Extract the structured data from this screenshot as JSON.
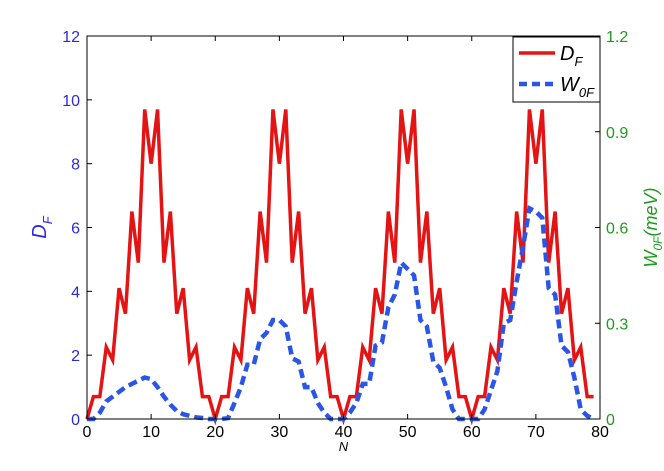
{
  "chart_data": {
    "type": "line",
    "x_axis": {
      "label": "N",
      "range": [
        0,
        80
      ],
      "ticks": [
        0,
        10,
        20,
        30,
        40,
        50,
        60,
        70,
        80
      ],
      "tick_labels": [
        "0",
        "10",
        "20",
        "30",
        "40",
        "50",
        "60",
        "70",
        "80"
      ]
    },
    "y_axis_left": {
      "label": "D",
      "label_sub": "F",
      "range": [
        0,
        12
      ],
      "ticks": [
        0,
        2,
        4,
        6,
        8,
        10,
        12
      ],
      "tick_labels": [
        "0",
        "2",
        "4",
        "6",
        "8",
        "10",
        "12"
      ],
      "color": "#2b2bd9"
    },
    "y_axis_right": {
      "label": "W",
      "label_sub": "0F",
      "label_suffix": "(meV)",
      "range": [
        0,
        1.2
      ],
      "ticks": [
        0,
        0.3,
        0.6,
        0.9,
        1.2
      ],
      "tick_labels": [
        "0",
        "0.3",
        "0.6",
        "0.9",
        "1.2"
      ],
      "color": "#1f9a1f"
    },
    "legend": {
      "position": "top-right",
      "entries": [
        {
          "label": "D",
          "sub": "F",
          "color": "#e41414",
          "style": "solid"
        },
        {
          "label": "W",
          "sub": "0F",
          "color": "#2b55e6",
          "style": "dashed"
        }
      ]
    },
    "grid": false,
    "series": [
      {
        "name": "D_F",
        "axis": "left",
        "color": "#e41414",
        "style": "solid",
        "x": [
          0,
          1,
          2,
          3,
          4,
          5,
          6,
          7,
          8,
          9,
          10,
          11,
          12,
          13,
          14,
          15,
          16,
          17,
          18,
          19,
          20,
          21,
          22,
          23,
          24,
          25,
          26,
          27,
          28,
          29,
          30,
          31,
          32,
          33,
          34,
          35,
          36,
          37,
          38,
          39,
          40,
          41,
          42,
          43,
          44,
          45,
          46,
          47,
          48,
          49,
          50,
          51,
          52,
          53,
          54,
          55,
          56,
          57,
          58,
          59,
          60,
          61,
          62,
          63,
          64,
          65,
          66,
          67,
          68,
          69,
          70,
          71,
          72,
          73,
          74,
          75,
          76,
          77,
          78,
          79
        ],
        "y": [
          0,
          0.7,
          0.7,
          2.25,
          1.85,
          4.1,
          3.3,
          6.5,
          4.9,
          9.7,
          8.0,
          9.7,
          4.9,
          6.5,
          3.3,
          4.1,
          1.85,
          2.25,
          0.7,
          0.7,
          0,
          0.7,
          0.7,
          2.25,
          1.85,
          4.1,
          3.3,
          6.5,
          4.9,
          9.7,
          8.0,
          9.7,
          4.9,
          6.5,
          3.3,
          4.1,
          1.85,
          2.25,
          0.7,
          0.7,
          0,
          0.7,
          0.7,
          2.25,
          1.85,
          4.1,
          3.3,
          6.5,
          4.9,
          9.7,
          8.0,
          9.7,
          4.9,
          6.5,
          3.3,
          4.1,
          1.85,
          2.25,
          0.7,
          0.7,
          0,
          0.7,
          0.7,
          2.25,
          1.85,
          4.1,
          3.3,
          6.5,
          4.9,
          9.7,
          8.0,
          9.7,
          4.9,
          6.5,
          3.3,
          4.1,
          1.85,
          2.25,
          0.7,
          0.7
        ]
      },
      {
        "name": "W_0F",
        "axis": "right",
        "color": "#2b55e6",
        "style": "dashed",
        "x": [
          0,
          1,
          2,
          3,
          4,
          5,
          6,
          7,
          8,
          9,
          10,
          11,
          12,
          13,
          14,
          15,
          16,
          17,
          18,
          19,
          20,
          21,
          22,
          23,
          24,
          25,
          26,
          27,
          28,
          29,
          30,
          31,
          32,
          33,
          34,
          35,
          36,
          37,
          38,
          39,
          40,
          41,
          42,
          43,
          44,
          45,
          46,
          47,
          48,
          49,
          50,
          51,
          52,
          53,
          54,
          55,
          56,
          57,
          58,
          59,
          60,
          61,
          62,
          63,
          64,
          65,
          66,
          67,
          68,
          69,
          70,
          71,
          72,
          73,
          74,
          75,
          76,
          77,
          78,
          79
        ],
        "y": [
          0,
          0,
          0.02,
          0.055,
          0.07,
          0.085,
          0.1,
          0.11,
          0.12,
          0.13,
          0.125,
          0.1,
          0.07,
          0.045,
          0.025,
          0.015,
          0.01,
          0.005,
          0.003,
          0,
          0,
          0,
          0.003,
          0.05,
          0.1,
          0.17,
          0.17,
          0.25,
          0.27,
          0.31,
          0.31,
          0.29,
          0.19,
          0.18,
          0.1,
          0.1,
          0.05,
          0.02,
          0,
          0,
          0,
          0.02,
          0.05,
          0.11,
          0.11,
          0.23,
          0.24,
          0.35,
          0.39,
          0.49,
          0.47,
          0.45,
          0.31,
          0.29,
          0.18,
          0.16,
          0.1,
          0.03,
          0,
          0,
          0,
          0,
          0.03,
          0.09,
          0.15,
          0.3,
          0.31,
          0.43,
          0.54,
          0.66,
          0.65,
          0.63,
          0.41,
          0.39,
          0.23,
          0.21,
          0.13,
          0.03,
          0.01,
          0
        ]
      }
    ]
  }
}
